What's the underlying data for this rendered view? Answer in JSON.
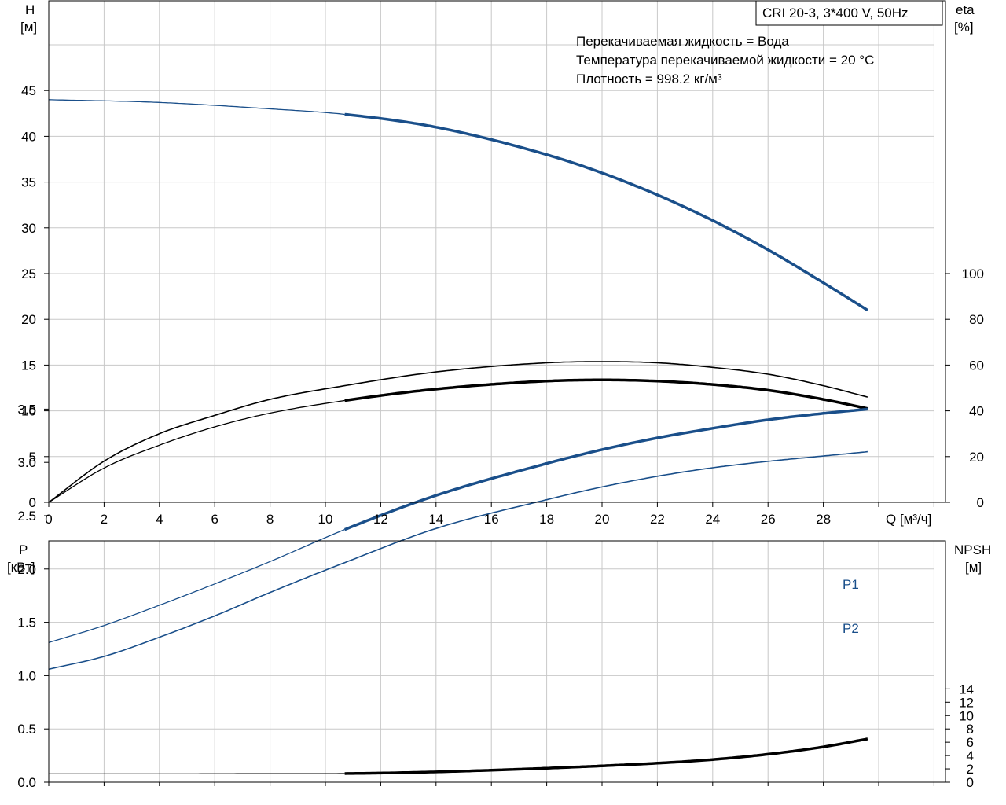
{
  "colors": {
    "blue": "#1a4f8a",
    "black": "#000000",
    "grid": "#c8c8c8"
  },
  "title_box": "CRI 20-3, 3*400 V, 50Hz",
  "info_lines": [
    "Перекачиваемая жидкость = Вода",
    "Температура перекачиваемой жидкости = 20 °C",
    "Плотность = 998.2 кг/м³"
  ],
  "chart_data": [
    {
      "type": "line",
      "xlabel": "Q [м³/ч]",
      "xlim": [
        0,
        32
      ],
      "xticks": [
        0,
        2,
        4,
        6,
        8,
        10,
        12,
        14,
        16,
        18,
        20,
        22,
        24,
        26,
        28
      ],
      "y_left": {
        "label_top": "H",
        "label_unit": "[м]",
        "ylim": [
          0,
          45
        ],
        "ticks": [
          0,
          5,
          10,
          15,
          20,
          25,
          30,
          35,
          40,
          45
        ]
      },
      "y_right": {
        "label_top": "eta",
        "label_unit": "[%]",
        "ylim": [
          0,
          100
        ],
        "ticks": [
          0,
          20,
          40,
          60,
          80,
          100
        ]
      },
      "grid": true,
      "series": [
        {
          "axis": "left",
          "color": "blue",
          "x": [
            0,
            4,
            8,
            10.7,
            14,
            18,
            20,
            22,
            24,
            26,
            28,
            29.6
          ],
          "y": [
            44.0,
            43.7,
            43.0,
            42.4,
            41.0,
            38.0,
            36.0,
            33.6,
            30.8,
            27.6,
            24.0,
            21.0
          ],
          "thick_from": 10.7
        },
        {
          "axis": "right",
          "color": "black",
          "x": [
            0,
            2,
            4,
            6,
            8,
            10.7,
            14,
            18,
            20,
            22,
            24,
            26,
            28,
            29.6
          ],
          "y": [
            0,
            18,
            30,
            38,
            45,
            51,
            57,
            61,
            61.5,
            61,
            59,
            56,
            51,
            46
          ],
          "thick_from": null
        },
        {
          "axis": "right",
          "color": "black",
          "x": [
            0,
            2,
            4,
            6,
            8,
            10.7,
            14,
            18,
            20,
            22,
            24,
            26,
            28,
            29.6
          ],
          "y": [
            0,
            15,
            25,
            33,
            39,
            44.5,
            49.5,
            53,
            53.5,
            53,
            51.5,
            49,
            45,
            41
          ],
          "thick_from": 10.7
        }
      ]
    },
    {
      "type": "line",
      "xlim": [
        0,
        32
      ],
      "y_left": {
        "label_top": "P",
        "label_unit": "[кВт]",
        "ylim": [
          0,
          4.0
        ],
        "ticks": [
          "0.0",
          "0.5",
          "1.0",
          "1.5",
          "2.0",
          "2.5",
          "3.0",
          "3.5"
        ]
      },
      "y_right": {
        "label_top": "NPSH",
        "label_unit": "[м]",
        "ylim": [
          0,
          16
        ],
        "ticks": [
          0,
          2,
          4,
          6,
          8,
          10,
          12,
          14
        ]
      },
      "grid": true,
      "series": [
        {
          "name": "P1",
          "axis": "left",
          "color": "blue",
          "x": [
            0,
            2,
            4,
            6,
            8,
            10.7,
            14,
            18,
            20,
            22,
            24,
            26,
            28,
            29.6
          ],
          "y": [
            1.31,
            1.47,
            1.66,
            1.86,
            2.07,
            2.37,
            2.69,
            2.99,
            3.12,
            3.23,
            3.32,
            3.4,
            3.46,
            3.5
          ],
          "thick_from": 10.7
        },
        {
          "name": "P2",
          "axis": "left",
          "color": "blue",
          "x": [
            0,
            2,
            4,
            6,
            8,
            10.7,
            14,
            18,
            20,
            22,
            24,
            26,
            28,
            29.6
          ],
          "y": [
            1.06,
            1.18,
            1.36,
            1.56,
            1.78,
            2.06,
            2.38,
            2.65,
            2.77,
            2.87,
            2.95,
            3.01,
            3.06,
            3.1
          ],
          "thick_from": null
        },
        {
          "axis": "right",
          "color": "black",
          "x": [
            0,
            4,
            8,
            10.7,
            14,
            18,
            20,
            22,
            24,
            26,
            28,
            29.6
          ],
          "y": [
            1.25,
            1.25,
            1.28,
            1.3,
            1.55,
            2.1,
            2.45,
            2.85,
            3.4,
            4.2,
            5.3,
            6.5
          ],
          "thick_from": 10.7
        }
      ]
    }
  ]
}
